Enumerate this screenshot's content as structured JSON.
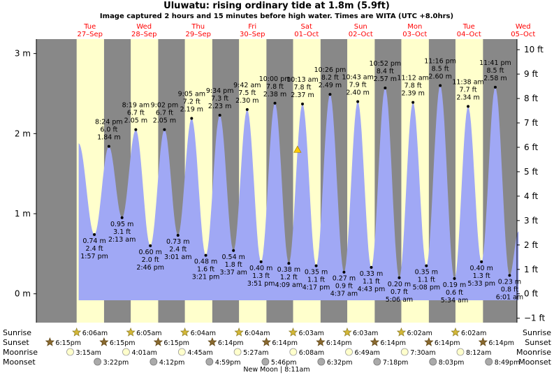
{
  "chart_data": {
    "type": "area",
    "title": "Uluwatu: rising  ordinary tide at 1.8m (5.9ft)",
    "subtitle": "Image captured 2 hours and 15 minutes before high water. Times are WITA (UTC +8.0hrs)",
    "days": [
      {
        "dow": "Tue",
        "date": "27–Sep"
      },
      {
        "dow": "Wed",
        "date": "28–Sep"
      },
      {
        "dow": "Thu",
        "date": "29–Sep"
      },
      {
        "dow": "Fri",
        "date": "30–Sep"
      },
      {
        "dow": "Sat",
        "date": "01–Oct"
      },
      {
        "dow": "Sun",
        "date": "02–Oct"
      },
      {
        "dow": "Mon",
        "date": "03–Oct"
      },
      {
        "dow": "Tue",
        "date": "04–Oct"
      },
      {
        "dow": "Wed",
        "date": "05–Oct"
      }
    ],
    "y_left": {
      "ticks": [
        3,
        2,
        1,
        0
      ],
      "labels": [
        "3 m",
        "2 m",
        "1 m",
        "0 m"
      ]
    },
    "y_right": {
      "ticks": [
        10,
        9,
        8,
        7,
        6,
        5,
        4,
        3,
        2,
        1,
        0,
        -1
      ],
      "labels": [
        "10 ft",
        "9 ft",
        "8 ft",
        "7 ft",
        "6 ft",
        "5 ft",
        "4 ft",
        "3 ft",
        "2 ft",
        "1 ft",
        "0 ft",
        "−1 ft"
      ]
    },
    "ylim_m": [
      -0.36,
      3.18
    ],
    "tides": [
      {
        "type": "low",
        "day": 0,
        "time_h": 13.95,
        "m": 0.74,
        "m_label": "0.74 m",
        "ft": "2.4 ft",
        "time": "1:57 pm"
      },
      {
        "type": "high",
        "day": 0,
        "time_h": 20.4,
        "m": 1.84,
        "m_label": "1.84 m",
        "ft": "6.0 ft",
        "time": "8:24 pm"
      },
      {
        "type": "low",
        "day": 1,
        "time_h": 2.22,
        "m": 0.95,
        "m_label": "0.95 m",
        "ft": "3.1 ft",
        "time": "2:13 am"
      },
      {
        "type": "high",
        "day": 1,
        "time_h": 8.32,
        "m": 2.05,
        "m_label": "2.05 m",
        "ft": "6.7 ft",
        "time": "8:19 am"
      },
      {
        "type": "low",
        "day": 1,
        "time_h": 14.77,
        "m": 0.6,
        "m_label": "0.60 m",
        "ft": "2.0 ft",
        "time": "2:46 pm"
      },
      {
        "type": "high",
        "day": 1,
        "time_h": 21.03,
        "m": 2.05,
        "m_label": "2.05 m",
        "ft": "6.7 ft",
        "time": "9:02 pm"
      },
      {
        "type": "low",
        "day": 2,
        "time_h": 3.02,
        "m": 0.73,
        "m_label": "0.73 m",
        "ft": "2.4 ft",
        "time": "3:01 am"
      },
      {
        "type": "high",
        "day": 2,
        "time_h": 9.08,
        "m": 2.19,
        "m_label": "2.19 m",
        "ft": "7.2 ft",
        "time": "9:05 am"
      },
      {
        "type": "low",
        "day": 2,
        "time_h": 15.35,
        "m": 0.48,
        "m_label": "0.48 m",
        "ft": "1.6 ft",
        "time": "3:21 pm"
      },
      {
        "type": "high",
        "day": 2,
        "time_h": 21.57,
        "m": 2.23,
        "m_label": "2.23 m",
        "ft": "7.3 ft",
        "time": "9:34 pm"
      },
      {
        "type": "low",
        "day": 3,
        "time_h": 3.62,
        "m": 0.54,
        "m_label": "0.54 m",
        "ft": "1.8 ft",
        "time": "3:37 am"
      },
      {
        "type": "high",
        "day": 3,
        "time_h": 9.7,
        "m": 2.3,
        "m_label": "2.30 m",
        "ft": "7.5 ft",
        "time": "9:42 am"
      },
      {
        "type": "low",
        "day": 3,
        "time_h": 15.85,
        "m": 0.4,
        "m_label": "0.40 m",
        "ft": "1.3 ft",
        "time": "3:51 pm"
      },
      {
        "type": "high",
        "day": 3,
        "time_h": 22.0,
        "m": 2.38,
        "m_label": "2.38 m",
        "ft": "7.8 ft",
        "time": "10:00 pm"
      },
      {
        "type": "low",
        "day": 4,
        "time_h": 4.15,
        "m": 0.38,
        "m_label": "0.38 m",
        "ft": "1.2 ft",
        "time": "4:09 am"
      },
      {
        "type": "high",
        "day": 4,
        "time_h": 10.22,
        "m": 2.37,
        "m_label": "2.37 m",
        "ft": "7.8 ft",
        "time": "10:13 am"
      },
      {
        "type": "low",
        "day": 4,
        "time_h": 16.28,
        "m": 0.35,
        "m_label": "0.35 m",
        "ft": "1.1 ft",
        "time": "4:17 pm"
      },
      {
        "type": "high",
        "day": 4,
        "time_h": 22.43,
        "m": 2.49,
        "m_label": "2.49 m",
        "ft": "8.2 ft",
        "time": "10:26 pm"
      },
      {
        "type": "low",
        "day": 5,
        "time_h": 4.62,
        "m": 0.27,
        "m_label": "0.27 m",
        "ft": "0.9 ft",
        "time": "4:37 am"
      },
      {
        "type": "high",
        "day": 5,
        "time_h": 10.72,
        "m": 2.4,
        "m_label": "2.40 m",
        "ft": "7.9 ft",
        "time": "10:43 am"
      },
      {
        "type": "low",
        "day": 5,
        "time_h": 16.72,
        "m": 0.33,
        "m_label": "0.33 m",
        "ft": "1.1 ft",
        "time": "4:43 pm"
      },
      {
        "type": "high",
        "day": 5,
        "time_h": 22.87,
        "m": 2.57,
        "m_label": "2.57 m",
        "ft": "8.4 ft",
        "time": "10:52 pm"
      },
      {
        "type": "low",
        "day": 6,
        "time_h": 5.1,
        "m": 0.2,
        "m_label": "0.20 m",
        "ft": "0.7 ft",
        "time": "5:06 am"
      },
      {
        "type": "high",
        "day": 6,
        "time_h": 11.2,
        "m": 2.39,
        "m_label": "2.39 m",
        "ft": "7.8 ft",
        "time": "11:12 am"
      },
      {
        "type": "low",
        "day": 6,
        "time_h": 17.13,
        "m": 0.35,
        "m_label": "0.35 m",
        "ft": "1.1 ft",
        "time": "5:08 pm"
      },
      {
        "type": "high",
        "day": 6,
        "time_h": 23.27,
        "m": 2.6,
        "m_label": "2.60 m",
        "ft": "8.5 ft",
        "time": "11:16 pm"
      },
      {
        "type": "low",
        "day": 7,
        "time_h": 5.57,
        "m": 0.19,
        "m_label": "0.19 m",
        "ft": "0.6 ft",
        "time": "5:34 am"
      },
      {
        "type": "high",
        "day": 7,
        "time_h": 11.63,
        "m": 2.34,
        "m_label": "2.34 m",
        "ft": "7.7 ft",
        "time": "11:38 am"
      },
      {
        "type": "low",
        "day": 7,
        "time_h": 17.55,
        "m": 0.4,
        "m_label": "0.40 m",
        "ft": "1.3 ft",
        "time": "5:33 pm"
      },
      {
        "type": "high",
        "day": 7,
        "time_h": 23.68,
        "m": 2.58,
        "m_label": "2.58 m",
        "ft": "8.5 ft",
        "time": "11:41 pm"
      },
      {
        "type": "low",
        "day": 8,
        "time_h": 6.02,
        "m": 0.23,
        "m_label": "0.23 m",
        "ft": "0.8 ft",
        "time": "6:01 am"
      }
    ],
    "series_start": {
      "day": 0,
      "time_h": 7.0,
      "m": 1.88
    },
    "series_end": {
      "day": 8,
      "time_h": 10.0,
      "m": 0.78
    },
    "current": {
      "day": 4,
      "time_h": 8.0,
      "m": 1.8
    },
    "sun": {
      "sunrise": [
        {
          "day": 0,
          "h": 6.1,
          "label": "6:06am"
        },
        {
          "day": 1,
          "h": 6.08,
          "label": "6:05am"
        },
        {
          "day": 2,
          "h": 6.07,
          "label": "6:04am"
        },
        {
          "day": 3,
          "h": 6.07,
          "label": "6:04am"
        },
        {
          "day": 4,
          "h": 6.05,
          "label": "6:03am"
        },
        {
          "day": 5,
          "h": 6.05,
          "label": "6:03am"
        },
        {
          "day": 6,
          "h": 6.03,
          "label": "6:02am"
        },
        {
          "day": 7,
          "h": 6.03,
          "label": "6:02am"
        }
      ],
      "sunset": [
        {
          "day": -1,
          "h": 18.25,
          "label": "6:15pm"
        },
        {
          "day": 0,
          "h": 18.25,
          "label": "6:15pm"
        },
        {
          "day": 1,
          "h": 18.25,
          "label": "6:15pm"
        },
        {
          "day": 2,
          "h": 18.23,
          "label": "6:14pm"
        },
        {
          "day": 3,
          "h": 18.23,
          "label": "6:14pm"
        },
        {
          "day": 4,
          "h": 18.23,
          "label": "6:14pm"
        },
        {
          "day": 5,
          "h": 18.23,
          "label": "6:14pm"
        },
        {
          "day": 6,
          "h": 18.23,
          "label": "6:14pm"
        },
        {
          "day": 7,
          "h": 18.23,
          "label": "6:14pm"
        }
      ]
    },
    "moon": {
      "moonrise": [
        {
          "day": 0,
          "h": 3.25,
          "label": "3:15am"
        },
        {
          "day": 1,
          "h": 4.02,
          "label": "4:01am"
        },
        {
          "day": 2,
          "h": 4.75,
          "label": "4:45am"
        },
        {
          "day": 3,
          "h": 5.45,
          "label": "5:27am"
        },
        {
          "day": 4,
          "h": 6.13,
          "label": "6:08am"
        },
        {
          "day": 5,
          "h": 6.82,
          "label": "6:49am"
        },
        {
          "day": 6,
          "h": 7.5,
          "label": "7:30am"
        },
        {
          "day": 7,
          "h": 8.2,
          "label": "8:12am"
        }
      ],
      "moonset": [
        {
          "day": 0,
          "h": 15.37,
          "label": "3:22pm"
        },
        {
          "day": 1,
          "h": 16.2,
          "label": "4:12pm"
        },
        {
          "day": 2,
          "h": 16.98,
          "label": "4:59pm"
        },
        {
          "day": 3,
          "h": 17.77,
          "label": "5:46pm"
        },
        {
          "day": 4,
          "h": 18.53,
          "label": "6:32pm"
        },
        {
          "day": 5,
          "h": 19.3,
          "label": "7:18pm"
        },
        {
          "day": 6,
          "h": 20.05,
          "label": "8:03pm"
        },
        {
          "day": 7,
          "h": 20.82,
          "label": "8:49pm"
        }
      ]
    },
    "row_labels": {
      "sunrise": "Sunrise",
      "sunset": "Sunset",
      "moonrise": "Moonrise",
      "moonset": "Moonset"
    },
    "new_moon_label": "New Moon | 8:11am",
    "colors": {
      "day": "#ffffcc",
      "night": "#888888",
      "water": "#a0a8f5",
      "title": "#000000",
      "date_text": "#ff0000",
      "marker": "#000000",
      "sun_star": "#d4b838",
      "sunset_star": "#8a6a30",
      "moonrise": "#ffffcc",
      "moonset": "#aaaaaa"
    }
  }
}
